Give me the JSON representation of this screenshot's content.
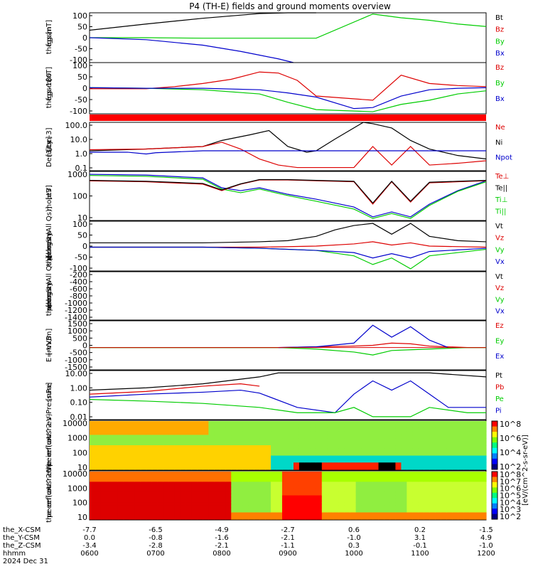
{
  "title": "P4 (TH-E) fields and ground moments overview",
  "colors": {
    "black": "#000000",
    "red": "#dd0000",
    "green": "#00cc00",
    "blue": "#0000cc",
    "band": "#ff0000"
  },
  "chart_data": [
    {
      "type": "line",
      "ylabel": [
        "the",
        "fgs",
        "gsm",
        "[nT]"
      ],
      "yticks": [
        "100",
        "50",
        "0",
        "-50",
        "-100"
      ],
      "ylim": [
        -100,
        100
      ],
      "legend": [
        {
          "label": "Bt",
          "color": "black"
        },
        {
          "label": "Bz",
          "color": "red"
        },
        {
          "label": "By",
          "color": "green"
        },
        {
          "label": "Bx",
          "color": "blue"
        }
      ],
      "series": [
        {
          "name": "Bt",
          "color": "black",
          "x": [
            0,
            30,
            60,
            90,
            105,
            120
          ],
          "y": [
            30,
            55,
            78,
            97,
            105,
            110
          ]
        },
        {
          "name": "By",
          "color": "green",
          "x": [
            0,
            30,
            60,
            90,
            120,
            150,
            165,
            180,
            195,
            210
          ],
          "y": [
            0,
            0,
            -2,
            -2,
            -2,
            95,
            80,
            70,
            55,
            45
          ]
        },
        {
          "name": "Bx",
          "color": "blue",
          "x": [
            0,
            30,
            60,
            80,
            90,
            100,
            108
          ],
          "y": [
            0,
            -8,
            -30,
            -55,
            -70,
            -85,
            -100
          ]
        }
      ]
    },
    {
      "type": "line",
      "ylabel": [
        "the",
        "fgs",
        "gsm",
        "-180",
        "[nT]"
      ],
      "yticks": [
        "100",
        "50",
        "0",
        "-50",
        "-100"
      ],
      "ylim": [
        -125,
        120
      ],
      "legend": [
        {
          "label": "Bz",
          "color": "red"
        },
        {
          "label": "By",
          "color": "green"
        },
        {
          "label": "Bx",
          "color": "blue"
        }
      ],
      "series": [
        {
          "name": "Bz",
          "color": "red",
          "x": [
            0,
            30,
            45,
            60,
            75,
            90,
            100,
            110,
            120,
            150,
            165,
            180,
            195,
            210
          ],
          "y": [
            -5,
            -5,
            5,
            20,
            40,
            75,
            70,
            35,
            -40,
            -60,
            60,
            20,
            10,
            5
          ]
        },
        {
          "name": "By",
          "color": "green",
          "x": [
            0,
            30,
            60,
            90,
            105,
            120,
            150,
            165,
            180,
            195,
            210
          ],
          "y": [
            0,
            -3,
            -10,
            -30,
            -70,
            -105,
            -115,
            -80,
            -60,
            -30,
            -15
          ]
        },
        {
          "name": "Bx",
          "color": "blue",
          "x": [
            0,
            30,
            60,
            90,
            105,
            120,
            140,
            150,
            165,
            180,
            195,
            210
          ],
          "y": [
            0,
            -3,
            -3,
            -10,
            -25,
            -45,
            -100,
            -95,
            -40,
            -10,
            -3,
            0
          ]
        }
      ]
    },
    {
      "type": "line",
      "log": true,
      "ylabel": [
        "Density",
        "[1/cc]",
        "[cm-3]"
      ],
      "yticks": [
        "100.0",
        "10.0",
        "1.0",
        "0.1"
      ],
      "ylim": [
        0.06,
        150
      ],
      "legend": [
        {
          "label": "Ne",
          "color": "red"
        },
        {
          "label": "Ni",
          "color": "black"
        },
        {
          "label": "Npot",
          "color": "blue"
        }
      ],
      "series": [
        {
          "name": "Ni",
          "color": "black",
          "x": [
            0,
            30,
            60,
            70,
            85,
            95,
            105,
            115,
            120,
            130,
            145,
            150,
            160,
            170,
            180,
            195,
            210
          ],
          "y": [
            1.5,
            2,
            3,
            8,
            20,
            40,
            3,
            1.2,
            1.5,
            10,
            150,
            120,
            60,
            8,
            2,
            0.7,
            0.4
          ]
        },
        {
          "name": "Ne",
          "color": "red",
          "x": [
            0,
            30,
            60,
            70,
            80,
            90,
            100,
            110,
            120,
            140,
            150,
            160,
            170,
            180,
            195,
            210
          ],
          "y": [
            1.8,
            2,
            3,
            6,
            2,
            0.4,
            0.15,
            0.1,
            0.1,
            0.1,
            3,
            0.15,
            3,
            0.15,
            0.2,
            0.3
          ]
        },
        {
          "name": "Npot",
          "color": "blue",
          "x": [
            0,
            20,
            30,
            35,
            60,
            90,
            120,
            135,
            140,
            160,
            180,
            210
          ],
          "y": [
            1.2,
            1.2,
            0.9,
            1.1,
            1.5,
            1.5,
            1.5,
            1.5,
            1.5,
            1.5,
            1.5,
            1.5
          ]
        }
      ]
    },
    {
      "type": "line",
      "log": true,
      "ylabel": [
        "moat3",
        "[eV]"
      ],
      "yticks": [
        "1000",
        "100",
        "10"
      ],
      "ylim": [
        3,
        3000
      ],
      "legend": [
        {
          "label": "Te⊥",
          "color": "red"
        },
        {
          "label": "Te||",
          "color": "black"
        },
        {
          "label": "Ti⊥",
          "color": "green"
        },
        {
          "label": "Ti||",
          "color": "green"
        }
      ],
      "series": [
        {
          "name": "Ti",
          "color": "blue",
          "x": [
            0,
            30,
            60,
            70,
            80,
            90,
            105,
            120,
            140,
            150,
            160,
            170,
            180,
            195,
            210
          ],
          "y": [
            2000,
            1800,
            1200,
            300,
            200,
            300,
            120,
            60,
            20,
            5,
            10,
            5,
            30,
            200,
            800
          ]
        },
        {
          "name": "Ti||",
          "color": "green",
          "x": [
            0,
            30,
            60,
            70,
            80,
            90,
            105,
            120,
            140,
            150,
            160,
            170,
            180,
            195,
            210
          ],
          "y": [
            1700,
            1500,
            1000,
            250,
            150,
            250,
            100,
            45,
            15,
            4,
            8,
            4,
            25,
            180,
            700
          ]
        },
        {
          "name": "Te",
          "color": "red",
          "x": [
            0,
            30,
            60,
            70,
            80,
            90,
            105,
            120,
            140,
            150,
            160,
            170,
            180,
            195,
            210
          ],
          "y": [
            800,
            700,
            500,
            200,
            500,
            900,
            900,
            800,
            700,
            30,
            700,
            40,
            600,
            700,
            800
          ]
        },
        {
          "name": "Te||",
          "color": "black",
          "x": [
            0,
            30,
            60,
            70,
            80,
            90,
            105,
            120,
            140,
            150,
            160,
            170,
            180,
            195,
            210
          ],
          "y": [
            850,
            750,
            550,
            220,
            520,
            950,
            950,
            850,
            750,
            35,
            750,
            45,
            650,
            750,
            850
          ]
        }
      ]
    },
    {
      "type": "line",
      "ylabel": [
        "the",
        "peir",
        "velocity",
        "gsm",
        "[km/s (All Qs)]"
      ],
      "yticks": [
        "100",
        "50",
        "0",
        "-50",
        "-100"
      ],
      "ylim": [
        -110,
        120
      ],
      "legend": [
        {
          "label": "Vt",
          "color": "black"
        },
        {
          "label": "Vz",
          "color": "red"
        },
        {
          "label": "Vy",
          "color": "green"
        },
        {
          "label": "Vx",
          "color": "blue"
        }
      ],
      "series": [
        {
          "name": "Vt",
          "color": "black",
          "x": [
            0,
            30,
            60,
            90,
            105,
            120,
            130,
            140,
            150,
            160,
            170,
            180,
            195,
            210
          ],
          "y": [
            20,
            20,
            20,
            25,
            30,
            50,
            80,
            100,
            110,
            60,
            110,
            50,
            30,
            25
          ]
        },
        {
          "name": "Vz",
          "color": "red",
          "x": [
            0,
            60,
            90,
            120,
            140,
            150,
            160,
            170,
            180,
            210
          ],
          "y": [
            0,
            0,
            0,
            5,
            15,
            25,
            10,
            20,
            5,
            0
          ]
        },
        {
          "name": "Vy",
          "color": "green",
          "x": [
            0,
            60,
            90,
            120,
            140,
            150,
            160,
            170,
            180,
            210
          ],
          "y": [
            0,
            0,
            -5,
            -15,
            -40,
            -80,
            -50,
            -100,
            -40,
            -10
          ]
        },
        {
          "name": "Vx",
          "color": "blue",
          "x": [
            0,
            60,
            90,
            120,
            140,
            150,
            160,
            170,
            180,
            210
          ],
          "y": [
            0,
            0,
            -5,
            -15,
            -25,
            -50,
            -30,
            -50,
            -20,
            -5
          ]
        }
      ]
    },
    {
      "type": "line",
      "ylabel": [
        "the",
        "peer",
        "velocity",
        "gsm",
        "[km/s (All Qs)]"
      ],
      "yticks": [
        "-200",
        "-400",
        "-600",
        "-800",
        "-1000",
        "-1200",
        "-1400"
      ],
      "ylim": [
        -1500,
        -100
      ],
      "legend": [
        {
          "label": "Vt",
          "color": "black"
        },
        {
          "label": "Vz",
          "color": "red"
        },
        {
          "label": "Vy",
          "color": "green"
        },
        {
          "label": "Vx",
          "color": "blue"
        }
      ],
      "series": []
    },
    {
      "type": "line",
      "ylabel": [
        "E=-VxB",
        "[mV/m]"
      ],
      "yticks": [
        "1500",
        "1000",
        "500",
        "0",
        "-500",
        "-1000",
        "-1500"
      ],
      "ylim": [
        -1500,
        1800
      ],
      "legend": [
        {
          "label": "Ez",
          "color": "red"
        },
        {
          "label": "Ey",
          "color": "green"
        },
        {
          "label": "Ex",
          "color": "blue"
        }
      ],
      "series": [
        {
          "name": "Ez",
          "color": "red",
          "x": [
            0,
            60,
            100,
            120,
            140,
            150,
            160,
            170,
            180,
            200,
            210
          ],
          "y": [
            0,
            0,
            0,
            50,
            100,
            150,
            300,
            250,
            100,
            0,
            0
          ]
        },
        {
          "name": "Ey",
          "color": "green",
          "x": [
            0,
            100,
            120,
            140,
            150,
            160,
            170,
            180,
            200,
            210
          ],
          "y": [
            0,
            0,
            -100,
            -300,
            -500,
            -200,
            -150,
            -100,
            0,
            0
          ]
        },
        {
          "name": "Ex",
          "color": "blue",
          "x": [
            100,
            120,
            140,
            150,
            160,
            170,
            180,
            190
          ],
          "y": [
            0,
            50,
            300,
            1500,
            700,
            1400,
            500,
            0
          ]
        }
      ]
    },
    {
      "type": "line",
      "log": true,
      "ylabel": [
        "Pressure",
        "[nPa]"
      ],
      "yticks": [
        "10.00",
        "1.00",
        "0.10",
        "0.01"
      ],
      "ylim": [
        0.006,
        30
      ],
      "legend": [
        {
          "label": "Pt",
          "color": "black"
        },
        {
          "label": "Pb",
          "color": "red"
        },
        {
          "label": "Pe",
          "color": "green"
        },
        {
          "label": "Pi",
          "color": "blue"
        }
      ],
      "series": [
        {
          "name": "Pt",
          "color": "black",
          "x": [
            0,
            30,
            60,
            90,
            100,
            130,
            180,
            210
          ],
          "y": [
            1,
            1.5,
            3,
            10,
            20,
            20,
            20,
            10
          ]
        },
        {
          "name": "Pb",
          "color": "red",
          "x": [
            0,
            30,
            60,
            80,
            90
          ],
          "y": [
            0.5,
            0.8,
            2,
            3,
            2
          ]
        },
        {
          "name": "Pi",
          "color": "blue",
          "x": [
            0,
            30,
            60,
            80,
            90,
            110,
            130,
            140,
            150,
            160,
            170,
            180,
            190,
            210
          ],
          "y": [
            0.3,
            0.5,
            0.7,
            1,
            0.6,
            0.05,
            0.02,
            0.5,
            5,
            1,
            5,
            0.5,
            0.05,
            0.05
          ]
        },
        {
          "name": "Pe",
          "color": "green",
          "x": [
            0,
            30,
            60,
            90,
            110,
            130,
            140,
            150,
            160,
            170,
            180,
            200,
            210
          ],
          "y": [
            0.2,
            0.15,
            0.1,
            0.05,
            0.02,
            0.02,
            0.05,
            0.01,
            0.01,
            0.01,
            0.05,
            0.02,
            0.02
          ]
        }
      ]
    },
    {
      "type": "heatmap",
      "ylabel": [
        "the",
        "peir",
        "en",
        "eflux",
        "eV",
        "(cm^2-s-",
        "sr-eV)"
      ],
      "yticks": [
        "10000",
        "1000",
        "100",
        "10"
      ]
    },
    {
      "type": "heatmap",
      "ylabel": [
        "the",
        "peer",
        "en",
        "eflux",
        "eV",
        "(cm^2-s-",
        "sr-eV)"
      ],
      "yticks": [
        "10000",
        "1000",
        "100",
        "10"
      ]
    }
  ],
  "colorbar": {
    "label": "[eV/(cm^2-s-sr-eV)]",
    "ticks": [
      "10^8",
      "10^6",
      "10^4",
      "10^2"
    ],
    "ticks_lower": [
      "10^8",
      "10^7",
      "10^6",
      "10^5",
      "10^4",
      "10^3",
      "10^2"
    ]
  },
  "xaxis": {
    "rows": [
      {
        "label": "the_X-CSM",
        "values": [
          "-7.7",
          "-6.5",
          "-4.9",
          "-2.7",
          "0.6",
          "0.2",
          "-1.5"
        ]
      },
      {
        "label": "the_Y-CSM",
        "values": [
          "0.0",
          "-0.8",
          "-1.6",
          "-2.1",
          "-1.0",
          "3.1",
          "4.9"
        ]
      },
      {
        "label": "the_Z-CSM",
        "values": [
          "-3.4",
          "-2.8",
          "-2.1",
          "-1.1",
          "0.3",
          "-0.1",
          "-1.0"
        ]
      },
      {
        "label": "hhmm",
        "values": [
          "0600",
          "0700",
          "0800",
          "0900",
          "1000",
          "1100",
          "1200"
        ]
      }
    ],
    "date": "2024 Dec 31"
  }
}
